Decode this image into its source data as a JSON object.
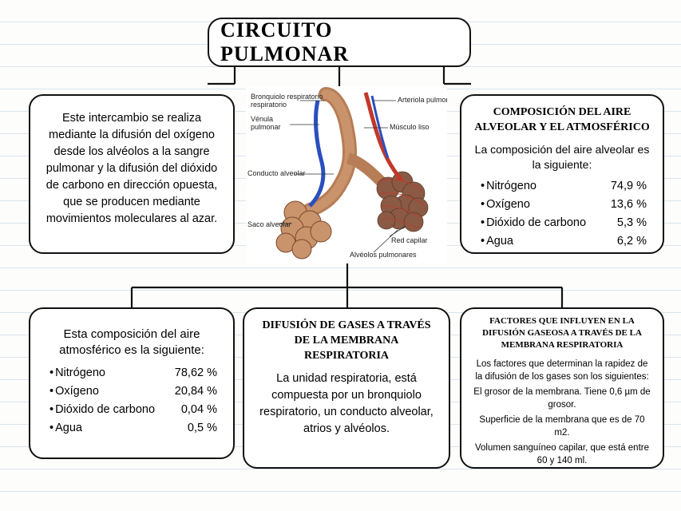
{
  "title": "CIRCUITO PULMONAR",
  "colors": {
    "border": "#111111",
    "background": "#fdfdfc",
    "ruled_line": "#d8e4ec",
    "artery": "#c0392b",
    "vein": "#2a4fbf",
    "tissue": "#b77d56",
    "alveoli_fill": "#8a5a44"
  },
  "box_a": {
    "text": "Este intercambio se realiza mediante la  difusión del oxígeno desde los alvéolos a la sangre pulmonar y la difusión del dióxido de carbono en dirección opuesta, que se producen mediante movimientos moleculares al azar."
  },
  "box_b": {
    "heading": "COMPOSICIÓN DEL AIRE ALVEOLAR Y EL ATMOSFÉRICO",
    "intro": "La composición del aire alveolar es la siguiente:",
    "rows": [
      {
        "label": "Nitrógeno",
        "value": "74,9 %"
      },
      {
        "label": "Oxígeno",
        "value": "13,6 %"
      },
      {
        "label": "Dióxido de carbono",
        "value": "5,3 %"
      },
      {
        "label": "Agua",
        "value": "6,2 %"
      }
    ]
  },
  "box_c": {
    "intro": "Esta composición del aire atmosférico es la siguiente:",
    "rows": [
      {
        "label": "Nitrógeno",
        "value": "78,62 %"
      },
      {
        "label": "Oxígeno",
        "value": "20,84 %"
      },
      {
        "label": "Dióxido de carbono",
        "value": "0,04 %"
      },
      {
        "label": "Agua",
        "value": "0,5 %"
      }
    ]
  },
  "box_d": {
    "heading": "DIFUSIÓN DE GASES A TRAVÉS DE LA MEMBRANA RESPIRATORIA",
    "text": "La unidad respiratoria, está compuesta por un bronquiolo respiratorio, un conducto alveolar, atrios y alvéolos."
  },
  "box_e": {
    "heading": "FACTORES QUE INFLUYEN EN LA DIFUSIÓN GASEOSA A TRAVÉS DE LA MEMBRANA RESPIRATORIA",
    "lines": [
      "Los factores que determinan la rapidez de la difusión de los gases son los siguientes:",
      "El grosor de la membrana. Tiene 0,6 µm de grosor.",
      "Superficie de la membrana que es de 70 m2.",
      "Volumen sanguíneo capilar, que está entre 60 y 140 ml."
    ]
  },
  "diagram_labels": {
    "bronquiolo": "Bronquiolo respiratorio",
    "arteriola": "Arteriola pulmonar",
    "venula": "Vénula pulmonar",
    "musculo": "Músculo liso",
    "conducto": "Conducto alveolar",
    "saco": "Saco alveolar",
    "red": "Red capilar",
    "alveolos": "Alvéolos pulmonares"
  }
}
